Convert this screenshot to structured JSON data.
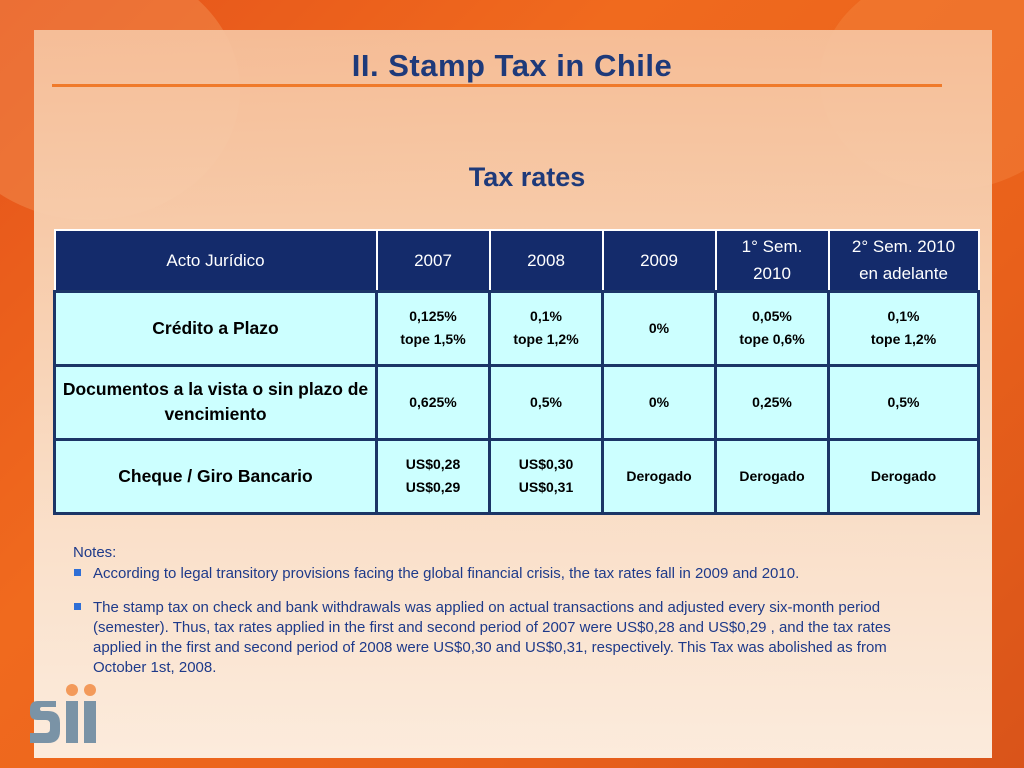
{
  "slide": {
    "title": "II. Stamp Tax in Chile",
    "subtitle": "Tax rates"
  },
  "table": {
    "headers": [
      "Acto Jurídico",
      "2007",
      "2008",
      "2009",
      "1° Sem.\n2010",
      "2° Sem. 2010\nen adelante"
    ],
    "rows": [
      {
        "label": "Crédito a Plazo",
        "cells": [
          "0,125%\ntope 1,5%",
          "0,1%\ntope 1,2%",
          "0%",
          "0,05%\ntope 0,6%",
          "0,1%\ntope 1,2%"
        ]
      },
      {
        "label": "Documentos a la vista o sin plazo de vencimiento",
        "cells": [
          "0,625%",
          "0,5%",
          "0%",
          "0,25%",
          "0,5%"
        ]
      },
      {
        "label": "Cheque / Giro Bancario",
        "cells": [
          "US$0,28\nUS$0,29",
          "US$0,30\nUS$0,31",
          "Derogado",
          "Derogado",
          "Derogado"
        ]
      }
    ]
  },
  "notes": {
    "label": "Notes:",
    "items": [
      "According  to legal transitory provisions facing  the global financial crisis, the tax rates fall  in 2009 and 2010.",
      "The stamp tax on check and bank withdrawals  was applied on  actual transactions and adjusted  every six-month period (semester).  Thus, tax rates applied  in the first and second  period  of 2007 were US$0,28  and US$0,29 , and  the tax rates applied  in the first and second period of 2008 were US$0,30 and US$0,31, respectively. This Tax  was abolished  as from October  1st, 2008."
    ]
  },
  "logo": {
    "text": "Sii"
  },
  "colors": {
    "header_bg": "#142b6b",
    "cell_bg": "#ccffff",
    "title": "#1e3a7a",
    "accent_orange": "#f07a2a",
    "notes_text": "#1e3a8a"
  }
}
